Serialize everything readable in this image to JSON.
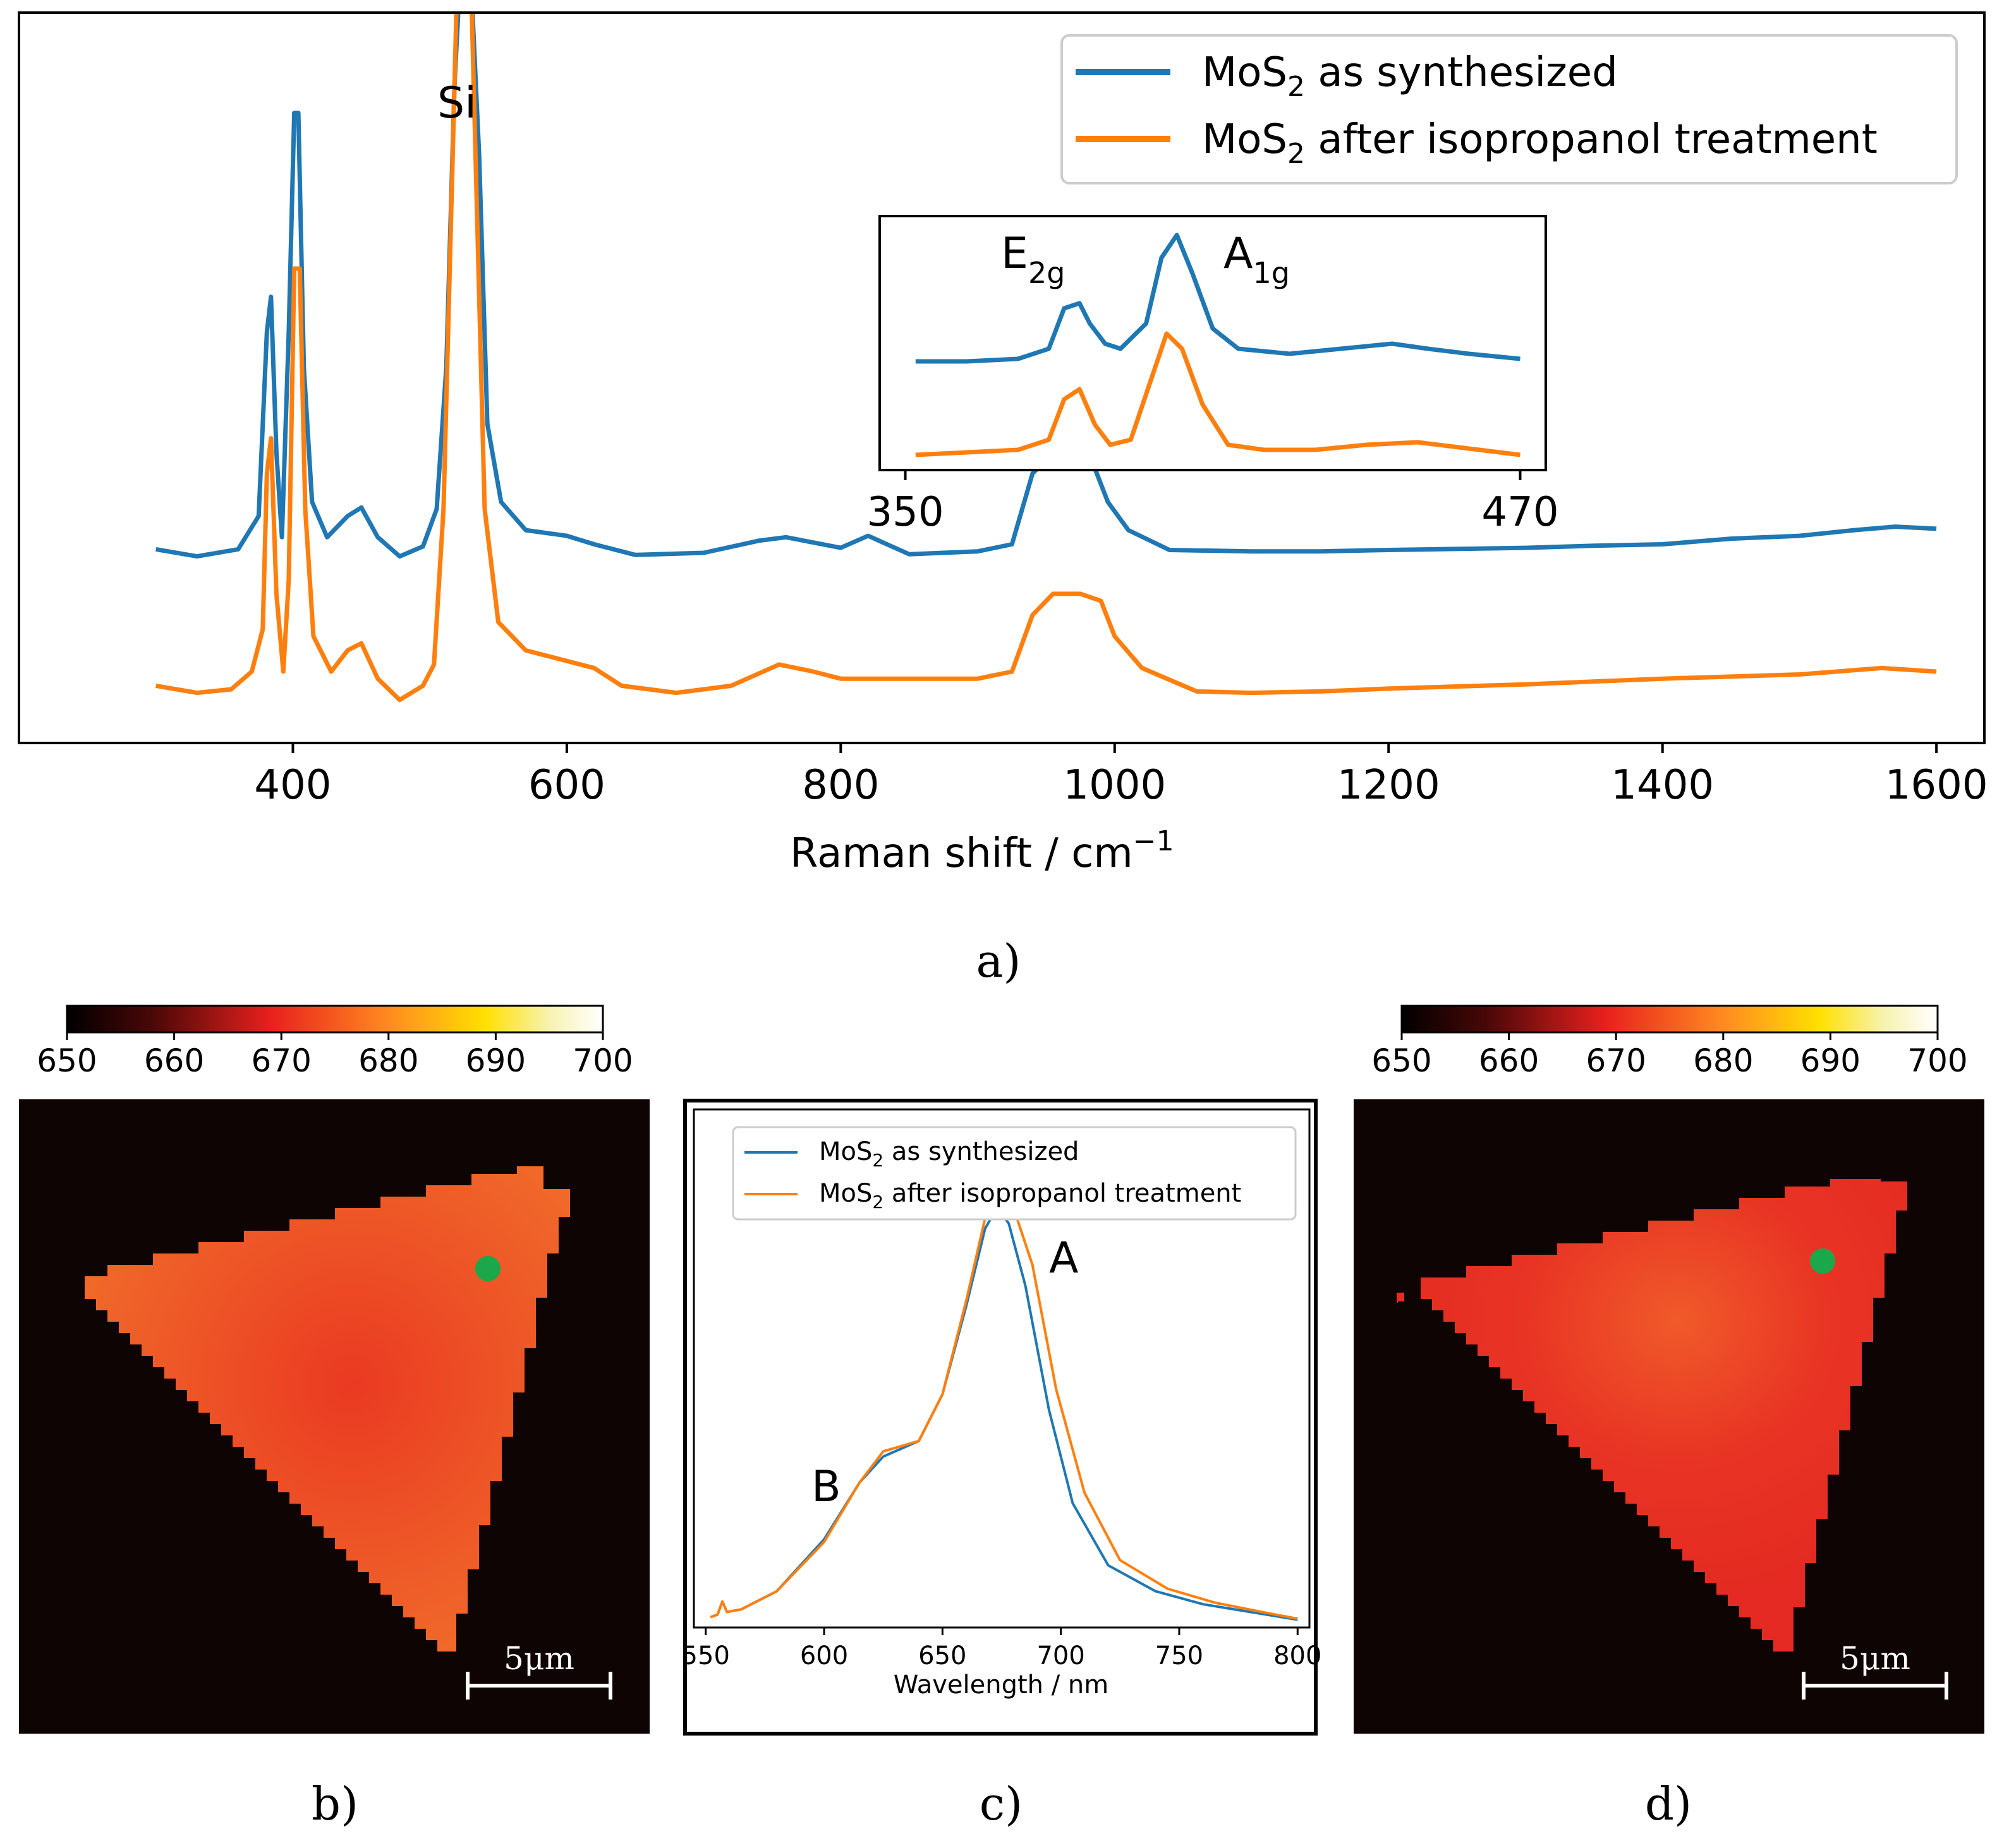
{
  "colors": {
    "blue": "#1f77b4",
    "orange": "#ff7f0e",
    "background_map": "#0e0404",
    "marker": "#1aa84a",
    "colormap": [
      "#000000",
      "#5a0a0a",
      "#e8201e",
      "#ff7a1a",
      "#ffd000",
      "#f4f0a0",
      "#ffffff"
    ]
  },
  "panel_labels": {
    "a": "a)",
    "b": "b)",
    "c": "c)",
    "d": "d)"
  },
  "legend": {
    "series1_prefix": "MoS",
    "series1_sub": "2",
    "series1_suffix": " as synthesized",
    "series2_prefix": "MoS",
    "series2_sub": "2",
    "series2_suffix": " after isopropanol treatment"
  },
  "chart_data": [
    {
      "id": "raman",
      "type": "line",
      "title": "",
      "xlabel": "Raman shift / cm",
      "xlabel_sup": "−1",
      "ylabel": "",
      "xlim": [
        200,
        1635
      ],
      "ylim": [
        0,
        1
      ],
      "xticks": [
        400,
        600,
        800,
        1000,
        1200,
        1400,
        1600
      ],
      "annotations": [
        {
          "text": "Si",
          "x": 555
        }
      ],
      "series": [
        {
          "name": "MoS2 as synthesized",
          "color": "#1f77b4",
          "points": [
            [
              300,
              0.243
            ],
            [
              330,
              0.233
            ],
            [
              360,
              0.243
            ],
            [
              375,
              0.29
            ],
            [
              381,
              0.55
            ],
            [
              384,
              0.6
            ],
            [
              388,
              0.38
            ],
            [
              392,
              0.26
            ],
            [
              397,
              0.55
            ],
            [
              401,
              0.86
            ],
            [
              404,
              0.86
            ],
            [
              408,
              0.5
            ],
            [
              414,
              0.31
            ],
            [
              425,
              0.26
            ],
            [
              440,
              0.29
            ],
            [
              450,
              0.302
            ],
            [
              462,
              0.26
            ],
            [
              478,
              0.233
            ],
            [
              495,
              0.247
            ],
            [
              505,
              0.3
            ],
            [
              512,
              0.5
            ],
            [
              518,
              0.9
            ],
            [
              522,
              1.05
            ],
            [
              530,
              1.05
            ],
            [
              536,
              0.8
            ],
            [
              542,
              0.42
            ],
            [
              552,
              0.31
            ],
            [
              570,
              0.27
            ],
            [
              600,
              0.262
            ],
            [
              620,
              0.25
            ],
            [
              650,
              0.235
            ],
            [
              700,
              0.238
            ],
            [
              740,
              0.255
            ],
            [
              760,
              0.26
            ],
            [
              800,
              0.245
            ],
            [
              820,
              0.262
            ],
            [
              850,
              0.236
            ],
            [
              900,
              0.24
            ],
            [
              925,
              0.25
            ],
            [
              940,
              0.35
            ],
            [
              950,
              0.37
            ],
            [
              970,
              0.37
            ],
            [
              985,
              0.36
            ],
            [
              995,
              0.31
            ],
            [
              1010,
              0.27
            ],
            [
              1040,
              0.242
            ],
            [
              1100,
              0.24
            ],
            [
              1150,
              0.24
            ],
            [
              1200,
              0.242
            ],
            [
              1300,
              0.245
            ],
            [
              1350,
              0.248
            ],
            [
              1400,
              0.25
            ],
            [
              1450,
              0.258
            ],
            [
              1500,
              0.262
            ],
            [
              1540,
              0.27
            ],
            [
              1570,
              0.275
            ],
            [
              1600,
              0.272
            ]
          ]
        },
        {
          "name": "MoS2 after isopropanol treatment",
          "color": "#ff7f0e",
          "points": [
            [
              300,
              0.05
            ],
            [
              330,
              0.04
            ],
            [
              355,
              0.045
            ],
            [
              370,
              0.07
            ],
            [
              378,
              0.13
            ],
            [
              381,
              0.35
            ],
            [
              384,
              0.4
            ],
            [
              388,
              0.18
            ],
            [
              393,
              0.07
            ],
            [
              397,
              0.2
            ],
            [
              401,
              0.64
            ],
            [
              405,
              0.64
            ],
            [
              409,
              0.3
            ],
            [
              415,
              0.12
            ],
            [
              428,
              0.07
            ],
            [
              440,
              0.1
            ],
            [
              450,
              0.11
            ],
            [
              462,
              0.06
            ],
            [
              478,
              0.03
            ],
            [
              495,
              0.05
            ],
            [
              503,
              0.08
            ],
            [
              510,
              0.3
            ],
            [
              516,
              0.75
            ],
            [
              520,
              1.05
            ],
            [
              530,
              1.05
            ],
            [
              534,
              0.75
            ],
            [
              540,
              0.3
            ],
            [
              550,
              0.14
            ],
            [
              570,
              0.1
            ],
            [
              600,
              0.085
            ],
            [
              620,
              0.075
            ],
            [
              640,
              0.05
            ],
            [
              680,
              0.04
            ],
            [
              720,
              0.05
            ],
            [
              755,
              0.08
            ],
            [
              780,
              0.07
            ],
            [
              800,
              0.06
            ],
            [
              850,
              0.06
            ],
            [
              900,
              0.06
            ],
            [
              925,
              0.07
            ],
            [
              940,
              0.15
            ],
            [
              955,
              0.18
            ],
            [
              975,
              0.18
            ],
            [
              990,
              0.17
            ],
            [
              1000,
              0.12
            ],
            [
              1020,
              0.075
            ],
            [
              1060,
              0.042
            ],
            [
              1100,
              0.04
            ],
            [
              1150,
              0.042
            ],
            [
              1200,
              0.046
            ],
            [
              1300,
              0.052
            ],
            [
              1400,
              0.06
            ],
            [
              1500,
              0.066
            ],
            [
              1560,
              0.075
            ],
            [
              1600,
              0.07
            ]
          ]
        }
      ]
    },
    {
      "id": "raman-inset",
      "type": "line",
      "xlim": [
        345,
        475
      ],
      "ylim": [
        0,
        1
      ],
      "xticks": [
        350,
        470
      ],
      "annotations": [
        {
          "text": "E",
          "sub": "2g",
          "x": 375
        },
        {
          "text": "A",
          "sub": "1g",
          "x": 415
        }
      ],
      "series": [
        {
          "name": "MoS2 as synthesized",
          "color": "#1f77b4",
          "points": [
            [
              352,
              0.45
            ],
            [
              362,
              0.45
            ],
            [
              372,
              0.46
            ],
            [
              378,
              0.5
            ],
            [
              381,
              0.66
            ],
            [
              384,
              0.68
            ],
            [
              386,
              0.6
            ],
            [
              389,
              0.52
            ],
            [
              392,
              0.5
            ],
            [
              397,
              0.6
            ],
            [
              400,
              0.86
            ],
            [
              403,
              0.95
            ],
            [
              406,
              0.8
            ],
            [
              410,
              0.58
            ],
            [
              415,
              0.5
            ],
            [
              425,
              0.48
            ],
            [
              435,
              0.5
            ],
            [
              445,
              0.52
            ],
            [
              452,
              0.5
            ],
            [
              460,
              0.48
            ],
            [
              470,
              0.46
            ]
          ]
        },
        {
          "name": "MoS2 after isopropanol treatment",
          "color": "#ff7f0e",
          "points": [
            [
              352,
              0.08
            ],
            [
              362,
              0.09
            ],
            [
              372,
              0.1
            ],
            [
              378,
              0.14
            ],
            [
              381,
              0.3
            ],
            [
              384,
              0.34
            ],
            [
              387,
              0.2
            ],
            [
              390,
              0.12
            ],
            [
              394,
              0.14
            ],
            [
              398,
              0.38
            ],
            [
              401,
              0.56
            ],
            [
              404,
              0.5
            ],
            [
              408,
              0.28
            ],
            [
              413,
              0.12
            ],
            [
              420,
              0.1
            ],
            [
              430,
              0.1
            ],
            [
              440,
              0.12
            ],
            [
              450,
              0.13
            ],
            [
              458,
              0.11
            ],
            [
              470,
              0.08
            ]
          ]
        }
      ]
    },
    {
      "id": "pl",
      "type": "line",
      "title": "",
      "xlabel": "Wavelength / nm",
      "ylabel": "",
      "xlim": [
        545,
        805
      ],
      "ylim": [
        0,
        1
      ],
      "xticks": [
        550,
        600,
        650,
        700,
        750,
        800
      ],
      "annotations": [
        {
          "text": "A",
          "x": 703
        },
        {
          "text": "B",
          "x": 597
        }
      ],
      "legend": {
        "placement": "top-right"
      },
      "series": [
        {
          "name": "MoS2 as synthesized",
          "color": "#1f77b4",
          "points": [
            [
              552,
              0.02
            ],
            [
              555,
              0.025
            ],
            [
              557,
              0.05
            ],
            [
              559,
              0.03
            ],
            [
              565,
              0.035
            ],
            [
              580,
              0.07
            ],
            [
              600,
              0.17
            ],
            [
              615,
              0.28
            ],
            [
              625,
              0.33
            ],
            [
              640,
              0.36
            ],
            [
              650,
              0.45
            ],
            [
              660,
              0.62
            ],
            [
              668,
              0.77
            ],
            [
              673,
              0.81
            ],
            [
              678,
              0.78
            ],
            [
              685,
              0.66
            ],
            [
              695,
              0.42
            ],
            [
              705,
              0.24
            ],
            [
              720,
              0.12
            ],
            [
              740,
              0.07
            ],
            [
              760,
              0.045
            ],
            [
              780,
              0.03
            ],
            [
              800,
              0.015
            ]
          ]
        },
        {
          "name": "MoS2 after isopropanol treatment",
          "color": "#ff7f0e",
          "points": [
            [
              552,
              0.02
            ],
            [
              555,
              0.025
            ],
            [
              557,
              0.05
            ],
            [
              559,
              0.03
            ],
            [
              565,
              0.035
            ],
            [
              580,
              0.07
            ],
            [
              600,
              0.165
            ],
            [
              615,
              0.28
            ],
            [
              625,
              0.34
            ],
            [
              640,
              0.36
            ],
            [
              650,
              0.45
            ],
            [
              660,
              0.63
            ],
            [
              668,
              0.79
            ],
            [
              675,
              0.84
            ],
            [
              680,
              0.81
            ],
            [
              688,
              0.7
            ],
            [
              698,
              0.46
            ],
            [
              710,
              0.26
            ],
            [
              725,
              0.13
            ],
            [
              745,
              0.075
            ],
            [
              765,
              0.048
            ],
            [
              785,
              0.03
            ],
            [
              800,
              0.017
            ]
          ]
        }
      ]
    },
    {
      "id": "pl-map-before",
      "type": "heatmap",
      "colorbar": {
        "min": 650,
        "max": 700,
        "ticks": [
          650,
          660,
          670,
          680,
          690,
          700
        ]
      },
      "scale_bar": "5μm",
      "typical_value": 677
    },
    {
      "id": "pl-map-after",
      "type": "heatmap",
      "colorbar": {
        "min": 650,
        "max": 700,
        "ticks": [
          650,
          660,
          670,
          680,
          690,
          700
        ]
      },
      "scale_bar": "5μm",
      "typical_value": 668
    }
  ]
}
